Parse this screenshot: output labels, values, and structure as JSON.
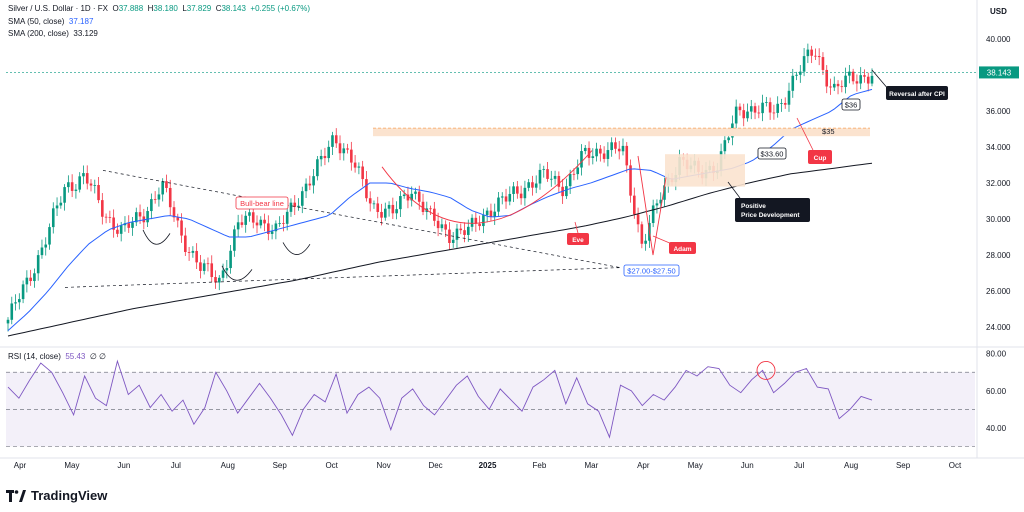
{
  "legend": {
    "title": "Silver / U.S. Dollar · 1D · FX",
    "open_label": "O",
    "open": "37.888",
    "high_label": "H",
    "high": "38.180",
    "low_label": "L",
    "low": "37.829",
    "close_label": "C",
    "close": "38.143",
    "change": "+0.255 (+0.67%)",
    "sma50_label": "SMA (50, close)",
    "sma50": "37.187",
    "sma200_label": "SMA (200, close)",
    "sma200": "33.129",
    "rsi_label": "RSI (14, close)",
    "rsi": "55.43",
    "rsi_extra1": "∅",
    "rsi_extra2": "∅"
  },
  "brand": "TradingView",
  "colors": {
    "up": "#089981",
    "down": "#f23645",
    "sma50": "#2962ff",
    "sma200": "#131722",
    "rsi": "#7e57c2",
    "annotation_red": "#f23645",
    "annotation_dark": "#131722",
    "zone_fill": "#fbe3cf",
    "accent_blue": "#2962ff"
  },
  "chart_data": [
    {
      "type": "candlestick",
      "currency": "USD",
      "ylim": [
        23.0,
        41.5
      ],
      "y_ticks": [
        "40.000",
        "38.000",
        "36.000",
        "34.000",
        "32.000",
        "30.000",
        "28.000",
        "26.000",
        "24.000"
      ],
      "y_tick_values": [
        40,
        38,
        36,
        34,
        32,
        30,
        28,
        26,
        24
      ],
      "x_labels": [
        "Apr",
        "May",
        "Jun",
        "Jul",
        "Aug",
        "Sep",
        "Oct",
        "Nov",
        "Dec",
        "2025",
        "Feb",
        "Mar",
        "Apr",
        "May",
        "Jun",
        "Jul",
        "Aug",
        "Sep",
        "Oct"
      ],
      "last_price": "38.143",
      "close_path": [
        24.4,
        26.5,
        29.0,
        31.8,
        32.4,
        30.3,
        29.3,
        30.2,
        31.9,
        29.2,
        27.3,
        26.6,
        29.7,
        30.1,
        29.2,
        31.1,
        32.5,
        34.7,
        33.0,
        30.8,
        30.2,
        31.8,
        30.0,
        29.2,
        29.3,
        30.5,
        31.1,
        31.9,
        32.4,
        31.8,
        33.5,
        33.9,
        33.8,
        28.7,
        31.2,
        33.4,
        32.4,
        33.2,
        35.9,
        36.3,
        35.8,
        38.1,
        39.3,
        37.2,
        37.8,
        38.1
      ],
      "sma50_path": [
        23.8,
        24.8,
        26.0,
        27.4,
        28.6,
        29.4,
        29.8,
        30.0,
        30.2,
        30.0,
        29.5,
        29.0,
        29.0,
        29.3,
        29.6,
        29.9,
        30.2,
        31.2,
        32.0,
        32.0,
        31.7,
        31.5,
        31.2,
        30.5,
        30.1,
        30.2,
        30.8,
        31.3,
        31.7,
        32.0,
        32.4,
        32.8,
        32.7,
        32.2,
        32.4,
        32.6,
        32.8,
        33.2,
        34.0,
        35.0,
        35.5,
        36.0,
        36.9,
        37.2
      ],
      "sma200_path": [
        23.5,
        24.0,
        24.5,
        25.0,
        25.4,
        25.8,
        26.2,
        26.6,
        27.1,
        27.6,
        28.0,
        28.4,
        28.8,
        29.2,
        29.6,
        30.1,
        30.7,
        31.4,
        32.0,
        32.5,
        32.8,
        33.1
      ],
      "annotations": {
        "bull_bear": "Bull-bear line",
        "eve": "Eve",
        "adam": "Adam",
        "cup": "Cup",
        "positive": [
          "Positive",
          "Price Development"
        ],
        "reversal": "Reversal after CPI",
        "level_36": "$36",
        "level_35": "$35",
        "level_3360": "$33.60",
        "level_27": "$27.00-$27.50"
      }
    },
    {
      "type": "line",
      "name": "RSI (14, close)",
      "ylim": [
        27,
        82
      ],
      "y_ticks": [
        "80.00",
        "60.00",
        "40.00"
      ],
      "y_tick_values": [
        80,
        60,
        40
      ],
      "bands": [
        70,
        50,
        30
      ],
      "last_value": "55.43",
      "values": [
        62,
        56,
        66,
        75,
        70,
        59,
        47,
        68,
        56,
        52,
        76,
        58,
        63,
        51,
        58,
        49,
        55,
        42,
        51,
        70,
        60,
        48,
        56,
        64,
        56,
        47,
        36,
        50,
        58,
        54,
        69,
        48,
        58,
        62,
        56,
        39,
        56,
        61,
        52,
        47,
        55,
        63,
        68,
        57,
        50,
        61,
        55,
        49,
        62,
        66,
        71,
        53,
        67,
        53,
        49,
        35,
        63,
        60,
        52,
        58,
        55,
        62,
        71,
        68,
        73,
        72,
        63,
        59,
        66,
        71,
        59,
        64,
        70,
        72,
        62,
        61,
        45,
        50,
        57,
        55
      ]
    }
  ]
}
